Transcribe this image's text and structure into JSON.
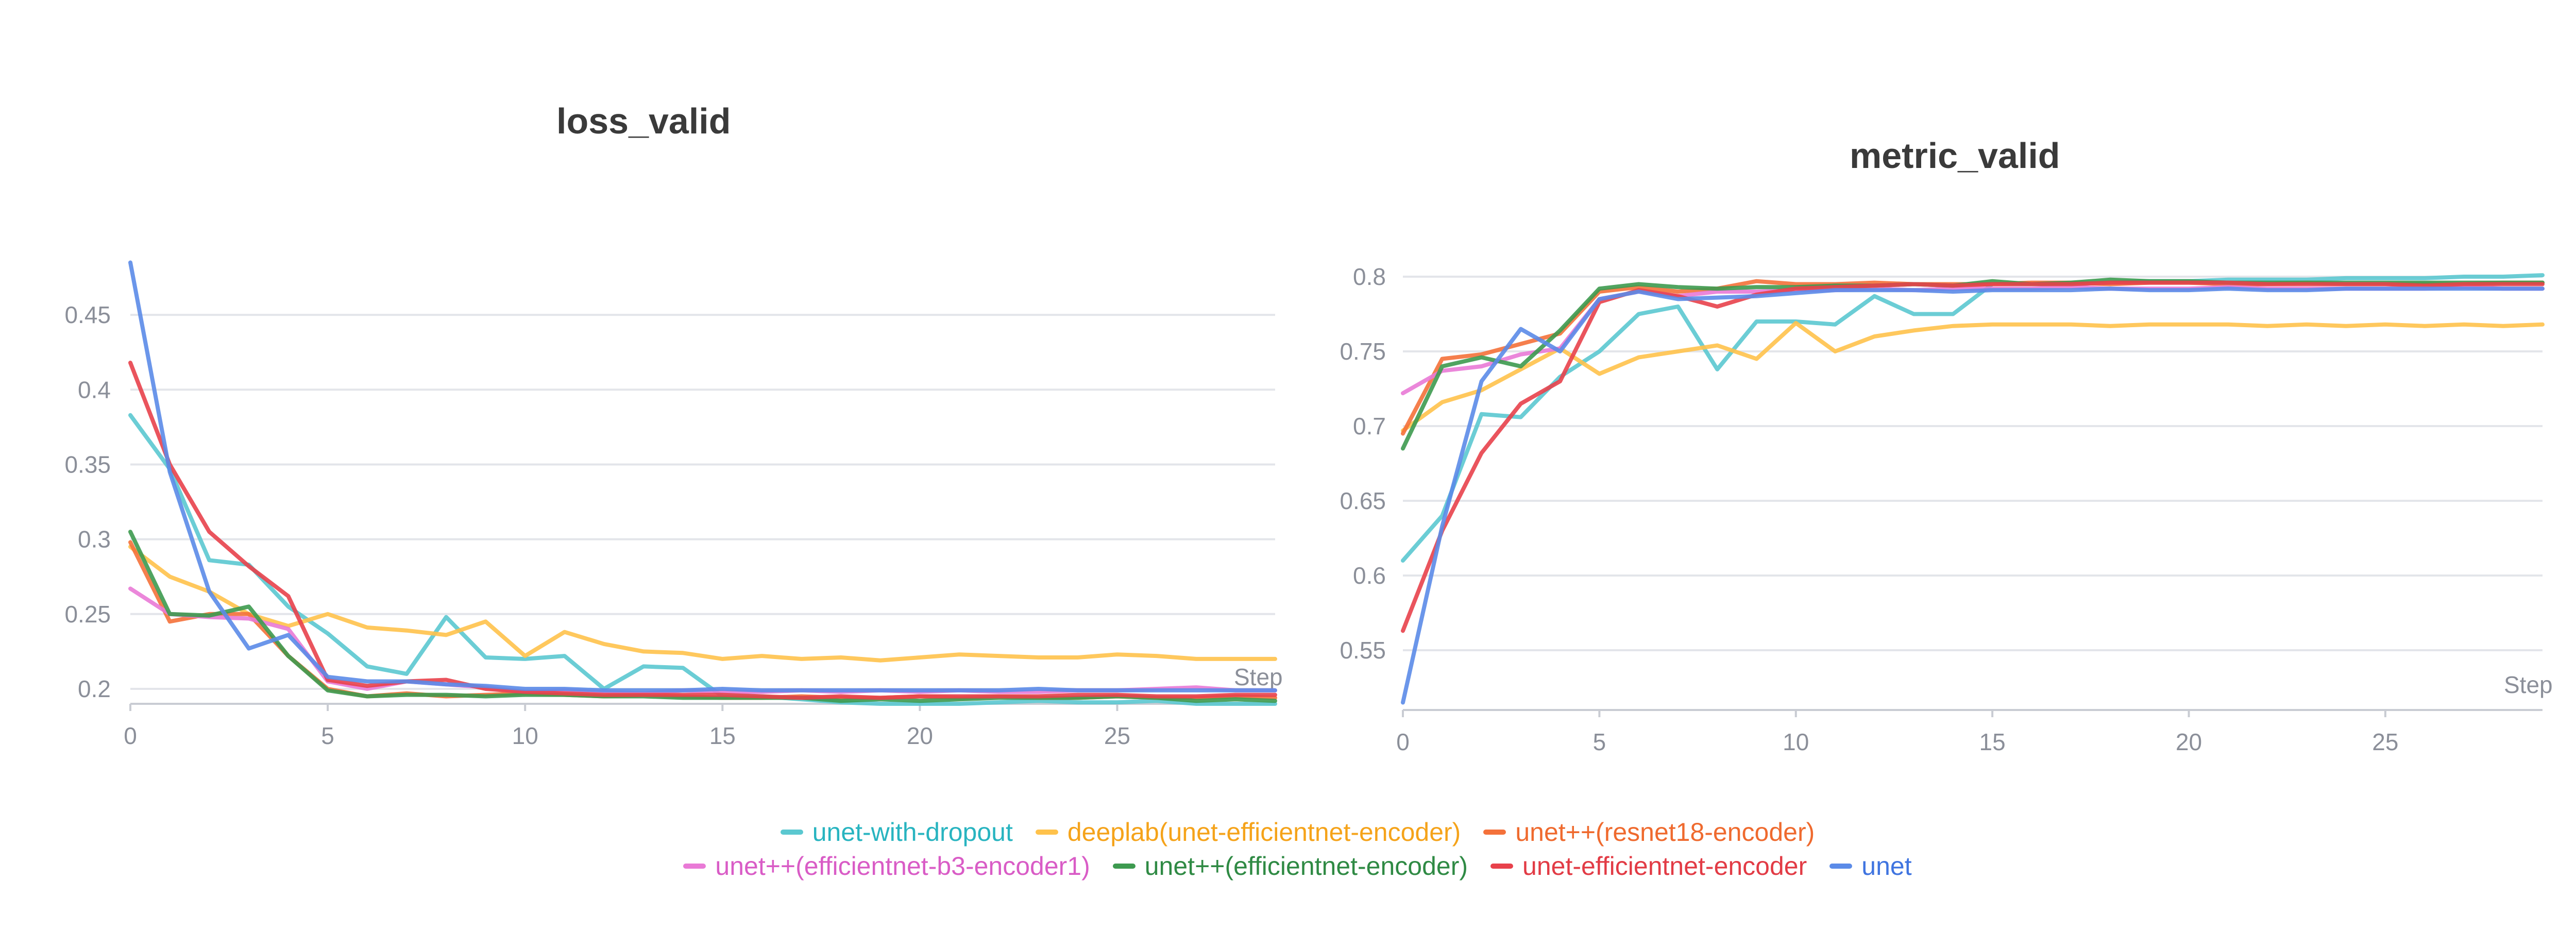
{
  "chart_data": [
    {
      "type": "line",
      "title": "loss_valid",
      "xlabel": "Step",
      "ylabel": "",
      "xlim": [
        0,
        29
      ],
      "ylim": [
        0.19,
        0.49
      ],
      "x_ticks": [
        0,
        5,
        10,
        15,
        20,
        25
      ],
      "y_ticks": [
        0.2,
        0.25,
        0.3,
        0.35,
        0.4,
        0.45
      ],
      "y_tick_labels": [
        "0.2",
        "0.25",
        "0.3",
        "0.35",
        "0.4",
        "0.45"
      ],
      "grid": true,
      "x": [
        0,
        1,
        2,
        3,
        4,
        5,
        6,
        7,
        8,
        9,
        10,
        11,
        12,
        13,
        14,
        15,
        16,
        17,
        18,
        19,
        20,
        21,
        22,
        23,
        24,
        25,
        26,
        27,
        28,
        29
      ],
      "series": [
        {
          "name": "unet-with-dropout",
          "color": "#5bc8d0",
          "values": [
            0.383,
            0.347,
            0.286,
            0.283,
            0.255,
            0.237,
            0.215,
            0.21,
            0.248,
            0.221,
            0.22,
            0.222,
            0.2,
            0.215,
            0.214,
            0.195,
            0.195,
            0.193,
            0.191,
            0.19,
            0.19,
            0.19,
            0.191,
            0.192,
            0.191,
            0.191,
            0.192,
            0.19,
            0.19,
            0.19
          ]
        },
        {
          "name": "deeplab(unet-efficientnet-encoder)",
          "color": "#ffc24b",
          "values": [
            0.295,
            0.275,
            0.265,
            0.25,
            0.242,
            0.25,
            0.241,
            0.239,
            0.236,
            0.245,
            0.222,
            0.238,
            0.23,
            0.225,
            0.224,
            0.22,
            0.222,
            0.22,
            0.221,
            0.219,
            0.221,
            0.223,
            0.222,
            0.221,
            0.221,
            0.223,
            0.222,
            0.22,
            0.22,
            0.22
          ]
        },
        {
          "name": "unet++(resnet18-encoder)",
          "color": "#f4713a",
          "values": [
            0.298,
            0.245,
            0.25,
            0.25,
            0.222,
            0.2,
            0.195,
            0.197,
            0.195,
            0.196,
            0.197,
            0.196,
            0.195,
            0.196,
            0.195,
            0.194,
            0.194,
            0.195,
            0.194,
            0.194,
            0.195,
            0.194,
            0.195,
            0.194,
            0.194,
            0.195,
            0.194,
            0.194,
            0.195,
            0.194
          ]
        },
        {
          "name": "unet++(efficientnet-b3-encoder1)",
          "color": "#e97ad6",
          "values": [
            0.267,
            0.25,
            0.248,
            0.247,
            0.24,
            0.205,
            0.2,
            0.205,
            0.203,
            0.201,
            0.198,
            0.199,
            0.198,
            0.197,
            0.199,
            0.198,
            0.198,
            0.199,
            0.198,
            0.199,
            0.198,
            0.199,
            0.198,
            0.198,
            0.199,
            0.199,
            0.2,
            0.201,
            0.199,
            0.199
          ]
        },
        {
          "name": "unet++(efficientnet-encoder)",
          "color": "#3d9a4f",
          "values": [
            0.305,
            0.25,
            0.249,
            0.255,
            0.222,
            0.199,
            0.195,
            0.196,
            0.196,
            0.195,
            0.196,
            0.196,
            0.195,
            0.195,
            0.194,
            0.194,
            0.194,
            0.194,
            0.192,
            0.193,
            0.192,
            0.193,
            0.194,
            0.194,
            0.194,
            0.195,
            0.194,
            0.192,
            0.193,
            0.192
          ]
        },
        {
          "name": "unet-efficientnet-encoder",
          "color": "#e8414b",
          "values": [
            0.418,
            0.35,
            0.305,
            0.282,
            0.262,
            0.206,
            0.202,
            0.205,
            0.206,
            0.2,
            0.198,
            0.197,
            0.196,
            0.196,
            0.196,
            0.196,
            0.195,
            0.194,
            0.195,
            0.194,
            0.195,
            0.195,
            0.195,
            0.195,
            0.196,
            0.196,
            0.195,
            0.195,
            0.196,
            0.196
          ]
        },
        {
          "name": "unet",
          "color": "#5b8be8",
          "values": [
            0.485,
            0.345,
            0.265,
            0.227,
            0.236,
            0.208,
            0.205,
            0.205,
            0.203,
            0.202,
            0.2,
            0.2,
            0.199,
            0.199,
            0.199,
            0.2,
            0.199,
            0.199,
            0.199,
            0.199,
            0.199,
            0.199,
            0.199,
            0.2,
            0.199,
            0.199,
            0.199,
            0.199,
            0.199,
            0.199
          ]
        }
      ]
    },
    {
      "type": "line",
      "title": "metric_valid",
      "xlabel": "Step",
      "ylabel": "",
      "xlim": [
        0,
        29
      ],
      "ylim": [
        0.51,
        0.81
      ],
      "x_ticks": [
        0,
        5,
        10,
        15,
        20,
        25
      ],
      "y_ticks": [
        0.55,
        0.6,
        0.65,
        0.7,
        0.75,
        0.8
      ],
      "y_tick_labels": [
        "0.55",
        "0.6",
        "0.65",
        "0.7",
        "0.75",
        "0.8"
      ],
      "grid": true,
      "x": [
        0,
        1,
        2,
        3,
        4,
        5,
        6,
        7,
        8,
        9,
        10,
        11,
        12,
        13,
        14,
        15,
        16,
        17,
        18,
        19,
        20,
        21,
        22,
        23,
        24,
        25,
        26,
        27,
        28,
        29
      ],
      "series": [
        {
          "name": "unet-with-dropout",
          "color": "#5bc8d0",
          "values": [
            0.61,
            0.64,
            0.708,
            0.706,
            0.733,
            0.75,
            0.775,
            0.78,
            0.738,
            0.77,
            0.77,
            0.768,
            0.787,
            0.775,
            0.775,
            0.795,
            0.795,
            0.795,
            0.796,
            0.797,
            0.797,
            0.798,
            0.798,
            0.798,
            0.799,
            0.799,
            0.799,
            0.8,
            0.8,
            0.801
          ]
        },
        {
          "name": "deeplab(unet-efficientnet-encoder)",
          "color": "#ffc24b",
          "values": [
            0.697,
            0.716,
            0.724,
            0.738,
            0.752,
            0.735,
            0.746,
            0.75,
            0.754,
            0.745,
            0.769,
            0.75,
            0.76,
            0.764,
            0.767,
            0.768,
            0.768,
            0.768,
            0.767,
            0.768,
            0.768,
            0.768,
            0.767,
            0.768,
            0.767,
            0.768,
            0.767,
            0.768,
            0.767,
            0.768
          ]
        },
        {
          "name": "unet++(resnet18-encoder)",
          "color": "#f4713a",
          "values": [
            0.695,
            0.745,
            0.748,
            0.755,
            0.762,
            0.79,
            0.793,
            0.79,
            0.792,
            0.797,
            0.795,
            0.795,
            0.796,
            0.795,
            0.795,
            0.795,
            0.796,
            0.796,
            0.795,
            0.796,
            0.796,
            0.795,
            0.795,
            0.796,
            0.795,
            0.795,
            0.795,
            0.795,
            0.796,
            0.796
          ]
        },
        {
          "name": "unet++(efficientnet-b3-encoder1)",
          "color": "#e97ad6",
          "values": [
            0.722,
            0.737,
            0.74,
            0.748,
            0.752,
            0.785,
            0.79,
            0.787,
            0.79,
            0.79,
            0.791,
            0.791,
            0.792,
            0.791,
            0.792,
            0.792,
            0.792,
            0.793,
            0.792,
            0.792,
            0.792,
            0.793,
            0.792,
            0.792,
            0.792,
            0.792,
            0.792,
            0.793,
            0.792,
            0.792
          ]
        },
        {
          "name": "unet++(efficientnet-encoder)",
          "color": "#3d9a4f",
          "values": [
            0.685,
            0.74,
            0.746,
            0.74,
            0.764,
            0.792,
            0.795,
            0.793,
            0.792,
            0.793,
            0.793,
            0.794,
            0.794,
            0.795,
            0.794,
            0.797,
            0.795,
            0.796,
            0.798,
            0.797,
            0.797,
            0.796,
            0.796,
            0.796,
            0.796,
            0.796,
            0.796,
            0.796,
            0.796,
            0.796
          ]
        },
        {
          "name": "unet-efficientnet-encoder",
          "color": "#e8414b",
          "values": [
            0.563,
            0.63,
            0.682,
            0.715,
            0.73,
            0.783,
            0.791,
            0.787,
            0.78,
            0.788,
            0.792,
            0.793,
            0.794,
            0.795,
            0.794,
            0.795,
            0.795,
            0.795,
            0.796,
            0.796,
            0.796,
            0.796,
            0.795,
            0.795,
            0.795,
            0.795,
            0.794,
            0.795,
            0.795,
            0.795
          ]
        },
        {
          "name": "unet",
          "color": "#5b8be8",
          "values": [
            0.515,
            0.633,
            0.73,
            0.765,
            0.75,
            0.785,
            0.79,
            0.785,
            0.786,
            0.787,
            0.789,
            0.791,
            0.791,
            0.791,
            0.79,
            0.791,
            0.791,
            0.791,
            0.792,
            0.791,
            0.791,
            0.792,
            0.791,
            0.791,
            0.792,
            0.792,
            0.792,
            0.792,
            0.792,
            0.792
          ]
        }
      ]
    }
  ],
  "legend": {
    "rows": [
      [
        {
          "label": "unet-with-dropout",
          "color": "#5bc8d0",
          "text_color": "#28b4c0"
        },
        {
          "label": "deeplab(unet-efficientnet-encoder)",
          "color": "#ffc24b",
          "text_color": "#f5a31a"
        },
        {
          "label": "unet++(resnet18-encoder)",
          "color": "#f4713a",
          "text_color": "#ef6a2e"
        }
      ],
      [
        {
          "label": "unet++(efficientnet-b3-encoder1)",
          "color": "#e97ad6",
          "text_color": "#d95cc6"
        },
        {
          "label": "unet++(efficientnet-encoder)",
          "color": "#3d9a4f",
          "text_color": "#2f8a44"
        },
        {
          "label": "unet-efficientnet-encoder",
          "color": "#e8414b",
          "text_color": "#e23b45"
        },
        {
          "label": "unet",
          "color": "#5b8be8",
          "text_color": "#3f74e0"
        }
      ]
    ]
  }
}
